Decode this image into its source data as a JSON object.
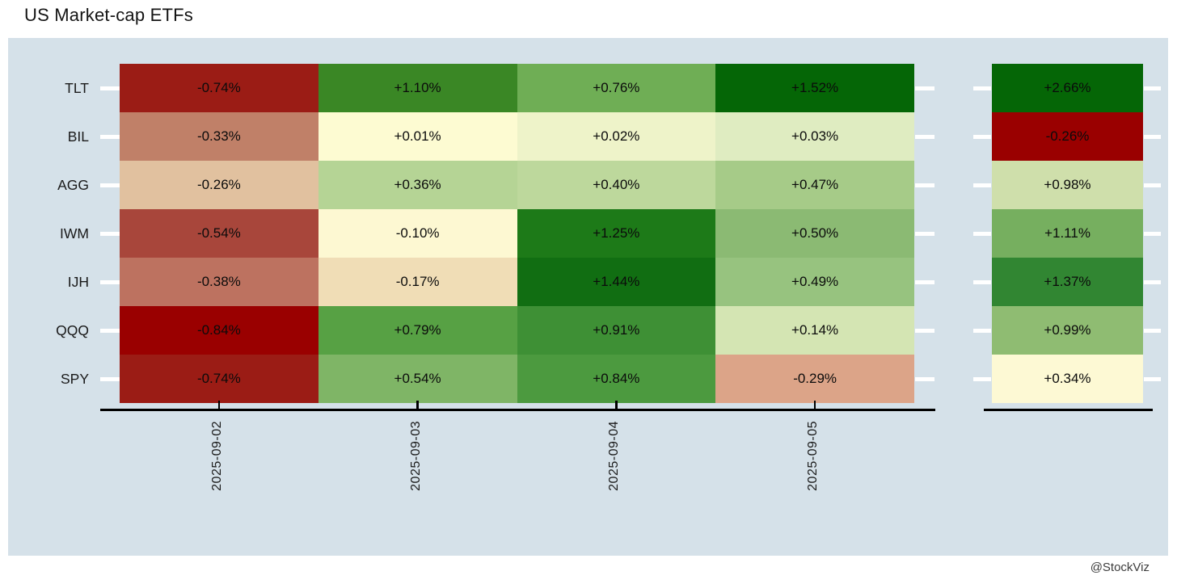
{
  "meta": {
    "watermark": "@StockViz"
  },
  "chart_data": {
    "type": "heatmap",
    "title": "US Market-cap ETFs",
    "x_tick_labels": [
      "2025-09-02",
      "2025-09-03",
      "2025-09-04",
      "2025-09-05"
    ],
    "y_tick_labels": [
      "TLT",
      "BIL",
      "AGG",
      "IWM",
      "IJH",
      "QQQ",
      "SPY"
    ],
    "legend_position": "none",
    "grid": false,
    "panel_bg": "#d5e1e9",
    "colormap": "diverging red-yellow-green centered at 0",
    "rows": [
      {
        "ticker": "TLT",
        "daily_values": [
          -0.74,
          1.1,
          0.76,
          1.52
        ],
        "daily_labels": [
          "-0.74%",
          "+1.10%",
          "+0.76%",
          "+1.52%"
        ],
        "daily_colors": [
          "#9b1c15",
          "#3a8725",
          "#6fae55",
          "#056606"
        ],
        "week_value": 2.66,
        "week_label": "+2.66%",
        "week_color": "#056606"
      },
      {
        "ticker": "BIL",
        "daily_values": [
          -0.33,
          0.01,
          0.02,
          0.03
        ],
        "daily_labels": [
          "-0.33%",
          "+0.01%",
          "+0.02%",
          "+0.03%"
        ],
        "daily_colors": [
          "#c08068",
          "#fdfbd2",
          "#eef3c9",
          "#dfecc1"
        ],
        "week_value": -0.26,
        "week_label": "-0.26%",
        "week_color": "#9a0000"
      },
      {
        "ticker": "AGG",
        "daily_values": [
          -0.26,
          0.36,
          0.4,
          0.47
        ],
        "daily_labels": [
          "-0.26%",
          "+0.36%",
          "+0.40%",
          "+0.47%"
        ],
        "daily_colors": [
          "#e1c19f",
          "#b5d495",
          "#bdd89c",
          "#a6cb88"
        ],
        "week_value": 0.98,
        "week_label": "+0.98%",
        "week_color": "#cfdfab"
      },
      {
        "ticker": "IWM",
        "daily_values": [
          -0.54,
          -0.1,
          1.25,
          0.5
        ],
        "daily_labels": [
          "-0.54%",
          "-0.10%",
          "+1.25%",
          "+0.50%"
        ],
        "daily_colors": [
          "#a8463b",
          "#fdf8d2",
          "#1d7a18",
          "#8bba73"
        ],
        "week_value": 1.11,
        "week_label": "+1.11%",
        "week_color": "#76af5f"
      },
      {
        "ticker": "IJH",
        "daily_values": [
          -0.38,
          -0.17,
          1.44,
          0.49
        ],
        "daily_labels": [
          "-0.38%",
          "-0.17%",
          "+1.44%",
          "+0.49%"
        ],
        "daily_colors": [
          "#bd7260",
          "#f0ddb6",
          "#116e12",
          "#97c37f"
        ],
        "week_value": 1.37,
        "week_label": "+1.37%",
        "week_color": "#318632"
      },
      {
        "ticker": "QQQ",
        "daily_values": [
          -0.84,
          0.79,
          0.91,
          0.14
        ],
        "daily_labels": [
          "-0.84%",
          "+0.79%",
          "+0.91%",
          "+0.14%"
        ],
        "daily_colors": [
          "#9a0000",
          "#57a144",
          "#3e9035",
          "#d4e5b3"
        ],
        "week_value": 0.99,
        "week_label": "+0.99%",
        "week_color": "#8fbc72"
      },
      {
        "ticker": "SPY",
        "daily_values": [
          -0.74,
          0.54,
          0.84,
          -0.29
        ],
        "daily_labels": [
          "-0.74%",
          "+0.54%",
          "+0.84%",
          "-0.29%"
        ],
        "daily_colors": [
          "#9b1c15",
          "#7fb566",
          "#4c9a3f",
          "#dca488"
        ],
        "week_value": 0.34,
        "week_label": "+0.34%",
        "week_color": "#fdf9d4"
      }
    ]
  }
}
